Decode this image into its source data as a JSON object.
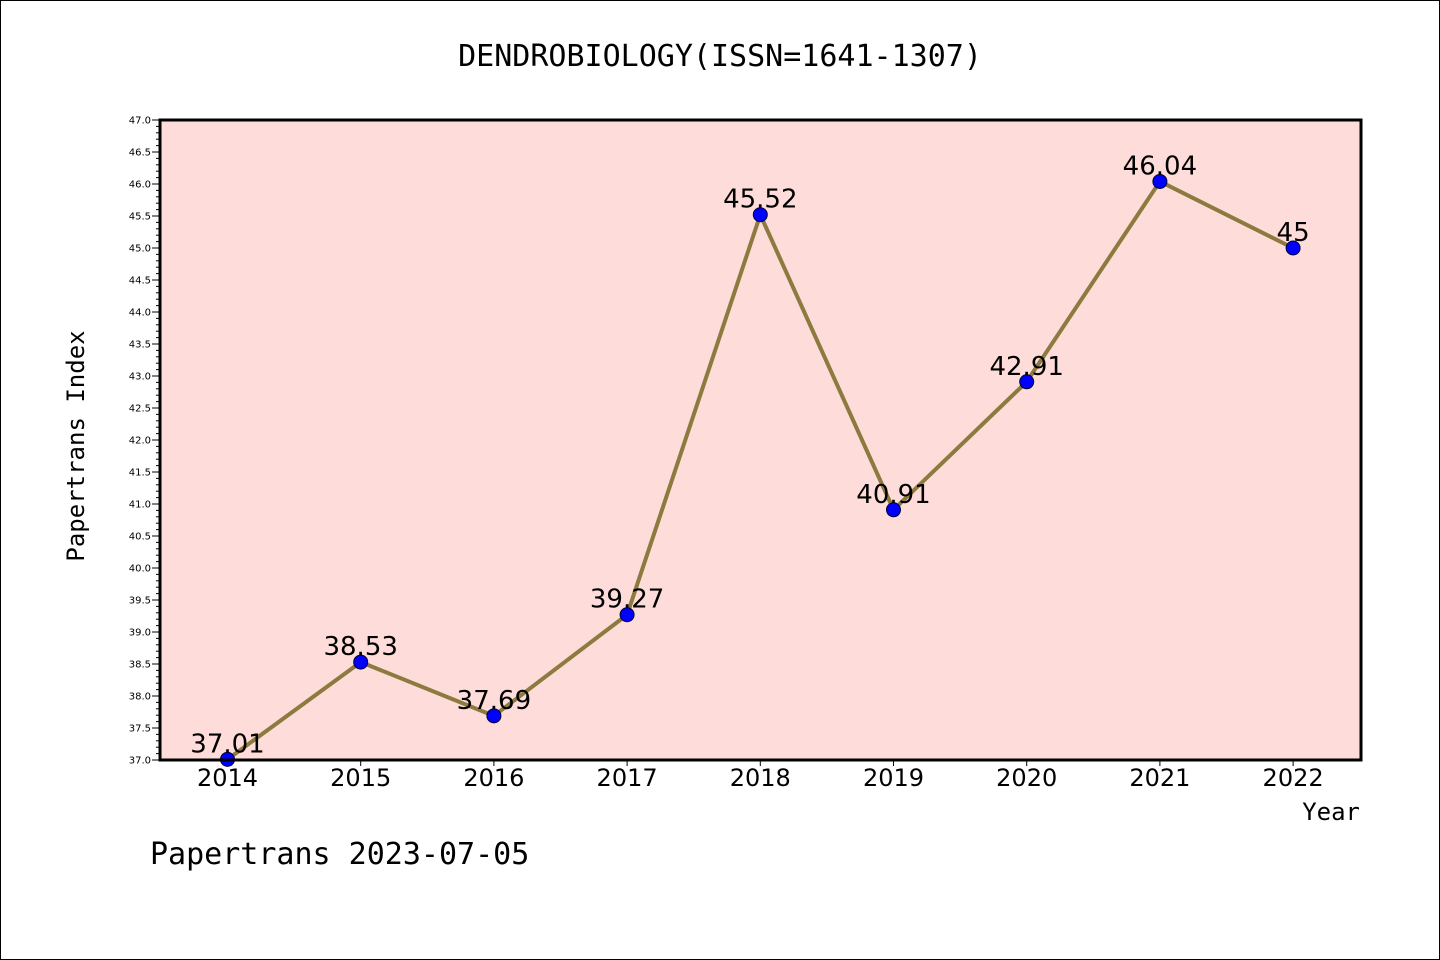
{
  "footer": "Papertrans 2023-07-05",
  "chart_data": {
    "type": "line",
    "title": "DENDROBIOLOGY(ISSN=1641-1307)",
    "xlabel": "Year",
    "ylabel": "Papertrans Index",
    "categories": [
      "2014",
      "2015",
      "2016",
      "2017",
      "2018",
      "2019",
      "2020",
      "2021",
      "2022"
    ],
    "values": [
      37.01,
      38.53,
      37.69,
      39.27,
      45.52,
      40.91,
      42.91,
      46.04,
      45
    ],
    "data_labels": [
      "37.01",
      "38.53",
      "37.69",
      "39.27",
      "45.52",
      "40.91",
      "42.91",
      "46.04",
      "45"
    ],
    "ylim": [
      37.0,
      47.0
    ],
    "y_major_step": 0.5,
    "y_minor_step": 0.1,
    "y_tick_labels": [
      "37.0",
      "37.5",
      "38.0",
      "38.5",
      "39.0",
      "39.5",
      "40.0",
      "40.5",
      "41.0",
      "41.5",
      "42.0",
      "42.5",
      "43.0",
      "43.5",
      "44.0",
      "44.5",
      "45.0",
      "45.5",
      "46.0",
      "46.5",
      "47.0"
    ],
    "grid": false,
    "colors": {
      "plot_background": "#fddcd9",
      "line": "#8c7a3e",
      "marker_fill": "#0000ff",
      "marker_edge": "#000033"
    }
  }
}
